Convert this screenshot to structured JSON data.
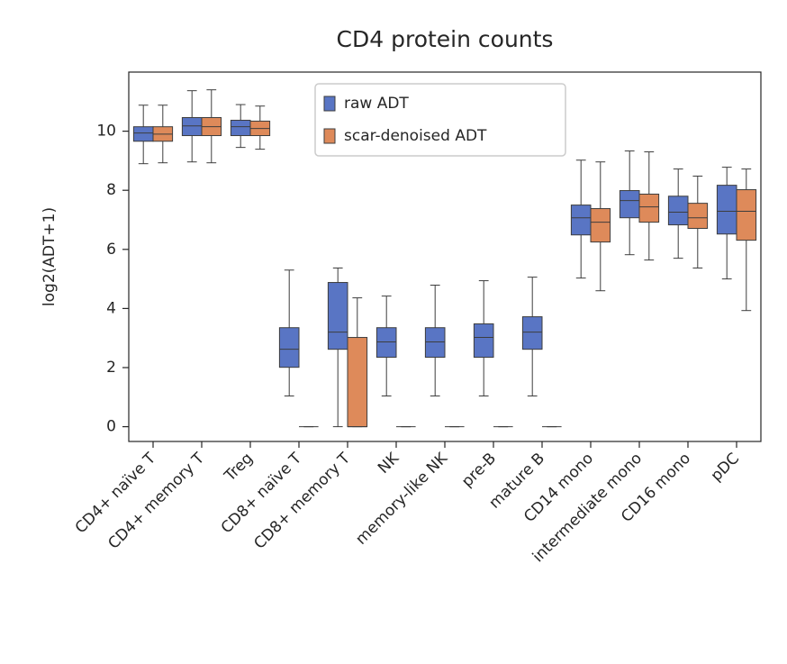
{
  "chart_data": {
    "type": "box",
    "title": "CD4 protein counts",
    "y_label": "log2(ADT+1)",
    "categories": [
      "CD4+ naïve T",
      "CD4+ memory T",
      "Treg",
      "CD8+ naïve T",
      "CD8+ memory T",
      "NK",
      "memory-like NK",
      "pre-B",
      "mature B",
      "CD14 mono",
      "intermediate mono",
      "CD16 mono",
      "pDC"
    ],
    "ylim": [
      -0.5,
      12
    ],
    "yticks": [
      0,
      2,
      4,
      6,
      8,
      10
    ],
    "grid": false,
    "legend_loc": "upper center",
    "series": [
      {
        "name": "raw ADT",
        "color": "#5975c4",
        "whislo": [
          8.9,
          8.96,
          9.45,
          1.04,
          0,
          1.04,
          1.04,
          1.04,
          1.04,
          5.03,
          5.82,
          5.7,
          5.0
        ],
        "q1": [
          9.66,
          9.85,
          9.85,
          2.01,
          2.62,
          2.35,
          2.35,
          2.35,
          2.62,
          6.49,
          7.07,
          6.83,
          6.52
        ],
        "med": [
          9.94,
          10.18,
          10.15,
          2.62,
          3.2,
          2.87,
          2.87,
          3.02,
          3.2,
          7.07,
          7.65,
          7.26,
          7.29
        ],
        "q3": [
          10.15,
          10.46,
          10.37,
          3.35,
          4.88,
          3.35,
          3.35,
          3.48,
          3.72,
          7.5,
          7.99,
          7.8,
          8.17
        ],
        "whishi": [
          10.88,
          11.37,
          10.9,
          5.3,
          5.37,
          4.42,
          4.79,
          4.94,
          5.06,
          9.02,
          9.33,
          8.72,
          8.78
        ]
      },
      {
        "name": "scar-denoised ADT",
        "color": "#de8a5a",
        "whislo": [
          8.93,
          8.93,
          9.39,
          0,
          0,
          0,
          0,
          0,
          0,
          4.6,
          5.64,
          5.37,
          3.93
        ],
        "q1": [
          9.66,
          9.85,
          9.85,
          0,
          0,
          0,
          0,
          0,
          0,
          6.25,
          6.92,
          6.71,
          6.31
        ],
        "med": [
          9.9,
          10.15,
          10.09,
          0,
          0,
          0,
          0,
          0,
          0,
          6.92,
          7.44,
          7.07,
          7.29
        ],
        "q3": [
          10.15,
          10.46,
          10.34,
          0,
          3.02,
          0,
          0,
          0,
          0,
          7.38,
          7.87,
          7.56,
          8.02
        ],
        "whishi": [
          10.88,
          11.4,
          10.85,
          0,
          4.36,
          0,
          0,
          0,
          0,
          8.96,
          9.3,
          8.48,
          8.72
        ]
      }
    ]
  }
}
